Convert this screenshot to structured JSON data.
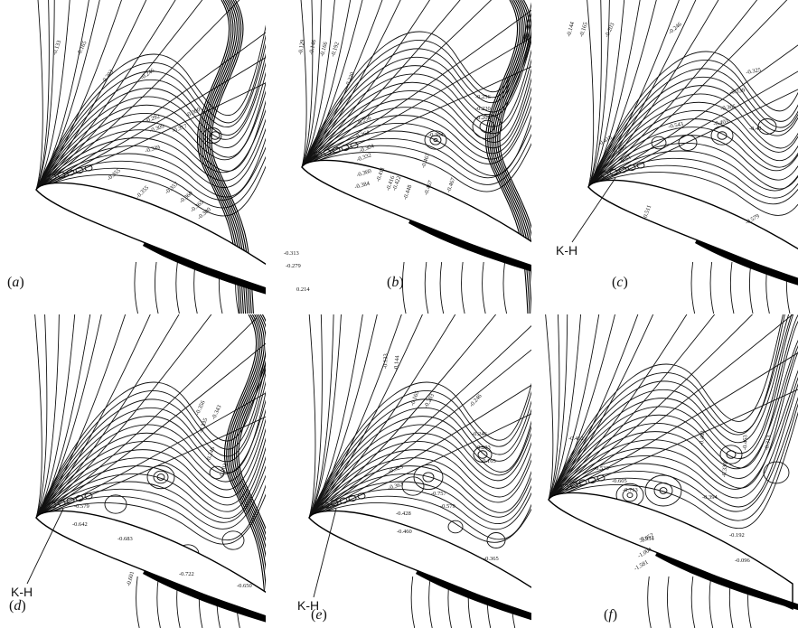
{
  "figure": {
    "panels": [
      {
        "id": "a",
        "letter": "a",
        "kh_label": "",
        "labels": [
          "-0.133",
          "-0.165",
          "-0.203",
          "-0.246",
          "-0.292",
          "-0.300",
          "-0.309",
          "-0.317",
          "-0.339",
          "-0.355",
          "-0.355",
          "-0.357",
          "-0.360",
          "-0.365",
          "-0.380"
        ]
      },
      {
        "id": "b",
        "letter": "b",
        "kh_label": "",
        "labels": [
          "-0.129",
          "-0.146",
          "-0.166",
          "-0.192",
          "-0.220",
          "-0.256",
          "-0.264",
          "-0.304",
          "-0.332",
          "-0.360",
          "-0.384",
          "-0.256",
          "-0.220",
          "-0.204",
          "-0.364",
          "-0.411",
          "-0.416",
          "-0.467",
          "-0.422",
          "-0.448",
          "-0.467",
          "-0.467",
          "-0.313",
          "-0.279",
          "0.214"
        ]
      },
      {
        "id": "c",
        "letter": "c",
        "kh_label": "K-H",
        "labels": [
          "-0.144",
          "-0.165",
          "-0.203",
          "-0.246",
          "-0.325",
          "-0.339",
          "-0.365",
          "-0.403",
          "-0.543",
          "-0.42",
          "-0.418",
          "-0.460",
          "-0.51",
          "-0.496",
          "-0.511",
          "-0.579"
        ]
      },
      {
        "id": "d",
        "letter": "d",
        "kh_label": "K-H",
        "labels": [
          "-0.356",
          "-0.343",
          "-0.335",
          "-0.246",
          "-0.203",
          "-0.579",
          "-0.642",
          "-0.683",
          "-0.601",
          "-0.722",
          "-0.650"
        ]
      },
      {
        "id": "e",
        "letter": "e",
        "kh_label": "K-H",
        "labels": [
          "-0.133",
          "-0.144",
          "-0.165",
          "-0.203",
          "-0.246",
          "-0.325",
          "-0.363",
          "-0.428",
          "-0.460",
          "-0.757",
          "-0.579",
          "-0.246",
          "-0.203",
          "-0.165",
          "-0.365"
        ]
      },
      {
        "id": "f",
        "letter": "f",
        "kh_label": "",
        "labels": [
          "-0.462",
          "-0.530",
          "-0.605",
          "-0.713",
          "-0.483",
          "-0.330",
          "-0.463",
          "-0.313",
          "-0.394",
          "-0.954",
          "-0.192",
          "-0.096",
          "-0.952",
          "-1.004",
          "-1.581"
        ]
      }
    ]
  }
}
